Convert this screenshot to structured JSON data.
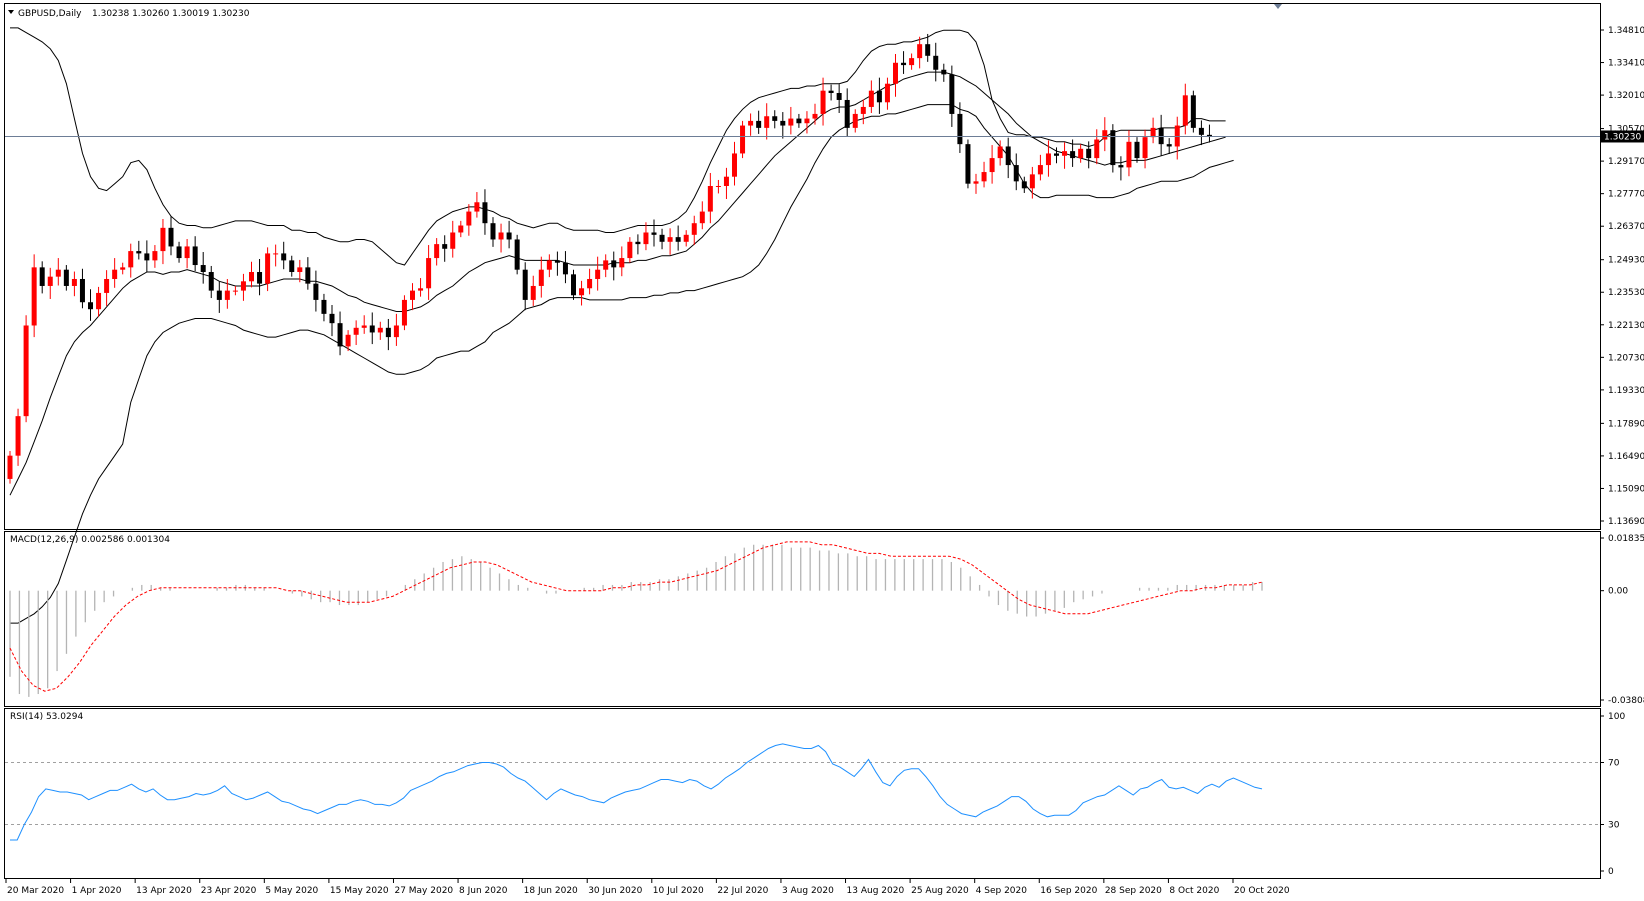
{
  "chart_data": [
    {
      "type": "candlestick",
      "header": {
        "symbol": "GBPUSD,Daily",
        "ohlc": "1.30238 1.30260 1.30019 1.30230"
      },
      "y_ticks": [
        "1.34810",
        "1.33410",
        "1.32010",
        "1.30570",
        "1.29170",
        "1.27770",
        "1.26370",
        "1.24930",
        "1.23530",
        "1.22130",
        "1.20730",
        "1.19330",
        "1.17890",
        "1.16490",
        "1.15090",
        "1.13690"
      ],
      "ylim": [
        1.1369,
        1.3481
      ],
      "last_price_label": "1.30230",
      "last_price": 1.3023,
      "x_ticks": [
        "20 Mar 2020",
        "1 Apr 2020",
        "13 Apr 2020",
        "23 Apr 2020",
        "5 May 2020",
        "15 May 2020",
        "27 May 2020",
        "8 Jun 2020",
        "18 Jun 2020",
        "30 Jun 2020",
        "10 Jul 2020",
        "22 Jul 2020",
        "3 Aug 2020",
        "13 Aug 2020",
        "25 Aug 2020",
        "4 Sep 2020",
        "16 Sep 2020",
        "28 Sep 2020",
        "8 Oct 2020",
        "20 Oct 2020"
      ],
      "close": [
        1.165,
        1.182,
        1.221,
        1.246,
        1.238,
        1.242,
        1.245,
        1.238,
        1.241,
        1.231,
        1.228,
        1.235,
        1.241,
        1.245,
        1.246,
        1.253,
        1.252,
        1.249,
        1.253,
        1.263,
        1.255,
        1.25,
        1.255,
        1.247,
        1.244,
        1.236,
        1.232,
        1.236,
        1.236,
        1.24,
        1.244,
        1.239,
        1.252,
        1.252,
        1.249,
        1.244,
        1.246,
        1.239,
        1.232,
        1.226,
        1.222,
        1.212,
        1.217,
        1.22,
        1.221,
        1.218,
        1.22,
        1.216,
        1.221,
        1.232,
        1.236,
        1.237,
        1.25,
        1.256,
        1.254,
        1.261,
        1.264,
        1.27,
        1.274,
        1.265,
        1.258,
        1.261,
        1.258,
        1.245,
        1.232,
        1.238,
        1.245,
        1.249,
        1.248,
        1.243,
        1.234,
        1.237,
        1.241,
        1.245,
        1.249,
        1.246,
        1.25,
        1.257,
        1.256,
        1.261,
        1.26,
        1.257,
        1.259,
        1.257,
        1.26,
        1.265,
        1.27,
        1.281,
        1.281,
        1.285,
        1.295,
        1.307,
        1.309,
        1.306,
        1.311,
        1.309,
        1.307,
        1.31,
        1.308,
        1.31,
        1.312,
        1.322,
        1.321,
        1.318,
        1.306,
        1.312,
        1.315,
        1.322,
        1.317,
        1.325,
        1.334,
        1.333,
        1.336,
        1.342,
        1.337,
        1.331,
        1.329,
        1.312,
        1.299,
        1.282,
        1.283,
        1.287,
        1.293,
        1.298,
        1.29,
        1.283,
        1.28,
        1.286,
        1.29,
        1.295,
        1.294,
        1.296,
        1.293,
        1.297,
        1.293,
        1.301,
        1.305,
        1.29,
        1.289,
        1.3,
        1.293,
        1.302,
        1.306,
        1.299,
        1.298,
        1.307,
        1.32,
        1.306,
        1.303,
        1.3023
      ],
      "volume_series": [
        {
          "name": "Bollinger upper",
          "values": [
            1.349,
            1.349,
            1.347,
            1.345,
            1.343,
            1.34,
            1.335,
            1.325,
            1.31,
            1.295,
            1.285,
            1.28,
            1.279,
            1.282,
            1.285,
            1.291,
            1.292,
            1.288,
            1.28,
            1.273,
            1.268,
            1.265,
            1.264,
            1.264,
            1.263,
            1.263,
            1.264,
            1.265,
            1.266,
            1.266,
            1.266,
            1.265,
            1.264,
            1.264,
            1.264,
            1.262,
            1.262,
            1.261,
            1.261,
            1.259,
            1.258,
            1.257,
            1.257,
            1.258,
            1.258,
            1.257,
            1.254,
            1.251,
            1.248,
            1.247,
            1.252,
            1.257,
            1.262,
            1.266,
            1.268,
            1.27,
            1.271,
            1.272,
            1.272,
            1.271,
            1.27,
            1.268,
            1.267,
            1.265,
            1.264,
            1.263,
            1.264,
            1.265,
            1.265,
            1.263,
            1.262,
            1.262,
            1.262,
            1.262,
            1.261,
            1.261,
            1.262,
            1.263,
            1.264,
            1.264,
            1.264,
            1.264,
            1.265,
            1.267,
            1.27,
            1.276,
            1.283,
            1.291,
            1.298,
            1.305,
            1.31,
            1.314,
            1.317,
            1.319,
            1.32,
            1.321,
            1.322,
            1.323,
            1.323,
            1.324,
            1.324,
            1.325,
            1.325,
            1.325,
            1.326,
            1.33,
            1.335,
            1.339,
            1.341,
            1.342,
            1.342,
            1.343,
            1.343,
            1.344,
            1.345,
            1.347,
            1.348,
            1.348,
            1.348,
            1.347,
            1.343,
            1.333,
            1.318,
            1.31,
            1.304,
            1.303,
            1.303,
            1.302,
            1.302,
            1.301,
            1.3,
            1.3,
            1.299,
            1.299,
            1.298,
            1.299,
            1.302,
            1.304,
            1.305,
            1.305,
            1.305,
            1.305,
            1.305,
            1.306,
            1.306,
            1.306,
            1.307,
            1.31,
            1.31,
            1.309,
            1.309,
            1.309
          ]
        },
        {
          "name": "Bollinger middle",
          "values": [
            1.148,
            1.155,
            1.162,
            1.171,
            1.18,
            1.19,
            1.199,
            1.208,
            1.214,
            1.218,
            1.221,
            1.225,
            1.229,
            1.233,
            1.237,
            1.24,
            1.242,
            1.244,
            1.244,
            1.243,
            1.244,
            1.244,
            1.245,
            1.244,
            1.243,
            1.242,
            1.24,
            1.239,
            1.238,
            1.238,
            1.238,
            1.238,
            1.239,
            1.24,
            1.241,
            1.241,
            1.241,
            1.24,
            1.24,
            1.239,
            1.238,
            1.236,
            1.234,
            1.233,
            1.231,
            1.23,
            1.229,
            1.228,
            1.227,
            1.227,
            1.228,
            1.229,
            1.231,
            1.234,
            1.236,
            1.238,
            1.241,
            1.244,
            1.246,
            1.248,
            1.249,
            1.25,
            1.251,
            1.25,
            1.249,
            1.249,
            1.249,
            1.249,
            1.249,
            1.248,
            1.247,
            1.247,
            1.247,
            1.247,
            1.247,
            1.248,
            1.248,
            1.248,
            1.249,
            1.249,
            1.25,
            1.251,
            1.251,
            1.252,
            1.253,
            1.256,
            1.259,
            1.263,
            1.266,
            1.27,
            1.274,
            1.278,
            1.282,
            1.286,
            1.29,
            1.294,
            1.297,
            1.3,
            1.303,
            1.306,
            1.309,
            1.312,
            1.314,
            1.315,
            1.315,
            1.316,
            1.318,
            1.32,
            1.322,
            1.324,
            1.325,
            1.327,
            1.328,
            1.329,
            1.33,
            1.33,
            1.33,
            1.329,
            1.328,
            1.326,
            1.324,
            1.321,
            1.318,
            1.315,
            1.312,
            1.308,
            1.305,
            1.302,
            1.3,
            1.298,
            1.296,
            1.295,
            1.294,
            1.293,
            1.292,
            1.291,
            1.29,
            1.291,
            1.291,
            1.292,
            1.292,
            1.292,
            1.293,
            1.294,
            1.295,
            1.296,
            1.297,
            1.298,
            1.299,
            1.3,
            1.301,
            1.302
          ]
        },
        {
          "name": "Bollinger lower",
          "values": [
            1.093,
            1.093,
            1.095,
            1.097,
            1.1,
            1.104,
            1.11,
            1.12,
            1.13,
            1.14,
            1.148,
            1.155,
            1.16,
            1.165,
            1.17,
            1.188,
            1.198,
            1.208,
            1.214,
            1.218,
            1.22,
            1.222,
            1.223,
            1.224,
            1.224,
            1.224,
            1.223,
            1.222,
            1.221,
            1.219,
            1.218,
            1.217,
            1.216,
            1.216,
            1.217,
            1.218,
            1.219,
            1.219,
            1.218,
            1.217,
            1.215,
            1.213,
            1.211,
            1.209,
            1.207,
            1.205,
            1.203,
            1.201,
            1.2,
            1.2,
            1.201,
            1.202,
            1.204,
            1.207,
            1.208,
            1.209,
            1.21,
            1.21,
            1.212,
            1.214,
            1.218,
            1.22,
            1.222,
            1.225,
            1.228,
            1.229,
            1.23,
            1.232,
            1.233,
            1.233,
            1.233,
            1.233,
            1.232,
            1.232,
            1.232,
            1.232,
            1.232,
            1.233,
            1.233,
            1.233,
            1.234,
            1.234,
            1.235,
            1.235,
            1.236,
            1.236,
            1.237,
            1.238,
            1.239,
            1.24,
            1.241,
            1.242,
            1.244,
            1.247,
            1.252,
            1.258,
            1.265,
            1.272,
            1.278,
            1.284,
            1.291,
            1.297,
            1.302,
            1.305,
            1.307,
            1.309,
            1.31,
            1.311,
            1.311,
            1.312,
            1.312,
            1.313,
            1.314,
            1.315,
            1.316,
            1.316,
            1.316,
            1.316,
            1.314,
            1.313,
            1.311,
            1.306,
            1.302,
            1.298,
            1.294,
            1.288,
            1.282,
            1.278,
            1.276,
            1.276,
            1.277,
            1.277,
            1.277,
            1.277,
            1.277,
            1.276,
            1.276,
            1.276,
            1.277,
            1.278,
            1.28,
            1.281,
            1.282,
            1.283,
            1.283,
            1.283,
            1.284,
            1.285,
            1.287,
            1.289,
            1.29,
            1.291,
            1.292
          ]
        }
      ]
    },
    {
      "type": "macd",
      "label": "MACD(12,26,9) 0.002586 0.001304",
      "y_ticks": [
        "0.018355",
        "0.00",
        "-0.03808"
      ],
      "ylim": [
        -0.03808,
        0.018355
      ],
      "histogram": [
        -0.03,
        -0.036,
        -0.037,
        -0.036,
        -0.034,
        -0.028,
        -0.022,
        -0.016,
        -0.011,
        -0.007,
        -0.004,
        -0.002,
        0,
        0.001,
        0.002,
        0.002,
        0.001,
        0.001,
        0,
        0,
        0,
        0,
        0.001,
        0.001,
        0.002,
        0.002,
        0.001,
        0.001,
        0,
        0,
        -0.001,
        -0.002,
        -0.003,
        -0.004,
        -0.004,
        -0.005,
        -0.005,
        -0.005,
        -0.004,
        -0.003,
        -0.002,
        0,
        0.002,
        0.004,
        0.006,
        0.008,
        0.01,
        0.011,
        0.012,
        0.011,
        0.01,
        0.008,
        0.006,
        0.004,
        0.002,
        0.001,
        0,
        -0.001,
        -0.001,
        0,
        0,
        0.001,
        0.001,
        0.002,
        0.002,
        0.002,
        0.003,
        0.003,
        0.003,
        0.004,
        0.004,
        0.005,
        0.006,
        0.007,
        0.008,
        0.01,
        0.012,
        0.013,
        0.015,
        0.016,
        0.016,
        0.016,
        0.016,
        0.015,
        0.015,
        0.015,
        0.014,
        0.014,
        0.013,
        0.013,
        0.012,
        0.012,
        0.011,
        0.011,
        0.011,
        0.011,
        0.011,
        0.011,
        0.011,
        0.011,
        0.01,
        0.008,
        0.005,
        0.002,
        -0.002,
        -0.005,
        -0.007,
        -0.008,
        -0.009,
        -0.009,
        -0.008,
        -0.007,
        -0.006,
        -0.004,
        -0.003,
        -0.002,
        -0.001,
        0,
        0,
        0,
        0.001,
        0.001,
        0.001,
        0.001,
        0.002,
        0.002,
        0.002,
        0.002,
        0.002,
        0.002,
        0.002,
        0.002,
        0.003,
        0.003
      ],
      "signal": [
        -0.02,
        -0.028,
        -0.033,
        -0.035,
        -0.034,
        -0.03,
        -0.025,
        -0.019,
        -0.014,
        -0.009,
        -0.005,
        -0.002,
        0,
        0.001,
        0.001,
        0.001,
        0.001,
        0.001,
        0.001,
        0.001,
        0.001,
        0.001,
        0.001,
        0.001,
        0,
        0,
        -0.001,
        -0.002,
        -0.003,
        -0.004,
        -0.004,
        -0.004,
        -0.003,
        -0.002,
        0,
        0.002,
        0.004,
        0.006,
        0.008,
        0.009,
        0.01,
        0.01,
        0.009,
        0.007,
        0.005,
        0.003,
        0.002,
        0.001,
        0,
        0,
        0,
        0,
        0.001,
        0.001,
        0.002,
        0.002,
        0.003,
        0.003,
        0.004,
        0.005,
        0.006,
        0.007,
        0.009,
        0.011,
        0.013,
        0.015,
        0.016,
        0.017,
        0.017,
        0.017,
        0.016,
        0.016,
        0.015,
        0.014,
        0.013,
        0.013,
        0.012,
        0.012,
        0.012,
        0.012,
        0.012,
        0.012,
        0.011,
        0.009,
        0.006,
        0.003,
        0,
        -0.003,
        -0.005,
        -0.006,
        -0.007,
        -0.008,
        -0.008,
        -0.008,
        -0.007,
        -0.006,
        -0.005,
        -0.004,
        -0.003,
        -0.002,
        -0.001,
        0,
        0,
        0.001,
        0.001,
        0.002,
        0.002,
        0.002,
        0.003
      ]
    },
    {
      "type": "line",
      "label": "RSI(14) 53.0294",
      "y_ticks": [
        "100",
        "70",
        "30",
        "0"
      ],
      "ylim": [
        0,
        100
      ],
      "levels": [
        70,
        30
      ],
      "values": [
        20,
        20,
        30,
        38,
        48,
        53,
        52,
        51,
        51,
        50,
        49,
        46,
        48,
        50,
        52,
        52,
        54,
        56,
        53,
        51,
        53,
        49,
        46,
        46,
        47,
        48,
        50,
        49,
        50,
        52,
        55,
        50,
        48,
        46,
        47,
        49,
        51,
        48,
        45,
        44,
        42,
        40,
        39,
        37,
        39,
        41,
        43,
        43,
        45,
        46,
        45,
        43,
        43,
        42,
        44,
        47,
        52,
        54,
        56,
        58,
        61,
        63,
        64,
        66,
        68,
        69,
        70,
        70,
        69,
        67,
        63,
        60,
        58,
        54,
        50,
        46,
        50,
        53,
        51,
        49,
        48,
        46,
        45,
        44,
        47,
        49,
        51,
        52,
        53,
        55,
        57,
        59,
        59,
        58,
        57,
        59,
        58,
        55,
        53,
        56,
        60,
        63,
        66,
        70,
        73,
        76,
        79,
        81,
        82,
        81,
        80,
        79,
        79,
        81,
        77,
        69,
        67,
        64,
        61,
        66,
        72,
        64,
        57,
        55,
        61,
        65,
        66,
        66,
        61,
        55,
        48,
        43,
        40,
        37,
        36,
        35,
        38,
        40,
        42,
        45,
        48,
        48,
        45,
        40,
        37,
        35,
        36,
        36,
        36,
        39,
        44,
        46,
        48,
        49,
        52,
        55,
        52,
        49,
        53,
        54,
        57,
        59,
        54,
        53,
        54,
        52,
        50,
        54,
        56,
        54,
        58,
        60,
        58,
        56,
        54,
        53
      ]
    }
  ]
}
